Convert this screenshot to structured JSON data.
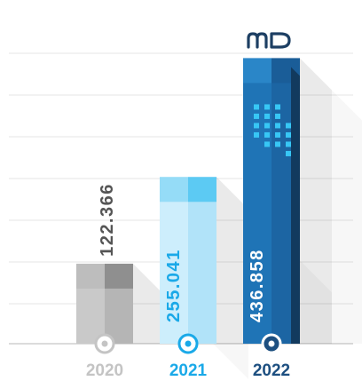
{
  "chart_data": {
    "type": "bar",
    "title": "",
    "xlabel": "",
    "ylabel": "",
    "grid": true,
    "legend": "none",
    "categories": [
      "2020",
      "2021",
      "2022"
    ],
    "values": [
      122.366,
      255.041,
      436.858
    ],
    "value_labels": [
      "122.366",
      "255.041",
      "436.858"
    ],
    "ylim": [
      0,
      466
    ]
  },
  "logo": {
    "alt": "MD"
  },
  "colors": {
    "grid": "#e6e6e6",
    "baseline": "#dcdcdc",
    "bars": [
      {
        "light": "#c9c9c9",
        "mid": "#b5b5b5",
        "top_l": "#bdbdbd",
        "top_r": "#8f8f8f",
        "label": "#555555",
        "year": "#c4c4c4"
      },
      {
        "light": "#cdeefc",
        "mid": "#b1e3f9",
        "top_l": "#95dcf7",
        "top_r": "#5ccaf3",
        "label": "#1aa9e8",
        "year": "#1aa9e8"
      },
      {
        "light": "#1f74b6",
        "mid": "#1c65a3",
        "top_l": "#2a86c8",
        "top_r": "#1a5d98",
        "label": "#ffffff",
        "year": "#1d4f80",
        "side": "#123a5e",
        "dots": "#37c7f5"
      }
    ]
  }
}
